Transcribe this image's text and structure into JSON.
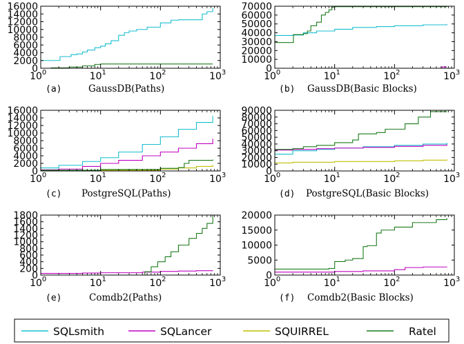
{
  "legend_entries": [
    {
      "name": "SQLsmith",
      "color": "#17becf"
    },
    {
      "name": "SQLancer",
      "color": "#c000c0"
    },
    {
      "name": "SQUIRREL",
      "color": "#bfbf00"
    },
    {
      "name": "Ratel",
      "color": "#1a7a1a"
    }
  ],
  "chart_data": [
    {
      "type": "line",
      "letter": "(a)",
      "caption": "GaussDB(Paths)",
      "xscale": "log",
      "xlim": [
        1,
        1000
      ],
      "ylim": [
        0,
        16000
      ],
      "yticks": [
        "0",
        "2000",
        "4000",
        "6000",
        "8000",
        "10000",
        "12000",
        "14000",
        "16000"
      ],
      "yticks_values": [
        0,
        2000,
        4000,
        6000,
        8000,
        10000,
        12000,
        14000,
        16000
      ],
      "series": [
        {
          "name": "SQLsmith",
          "color": "#17becf",
          "style": "step",
          "points": [
            [
              1,
              2000
            ],
            [
              2,
              2000
            ],
            [
              2.1,
              3000
            ],
            [
              3,
              3000
            ],
            [
              3.2,
              3500
            ],
            [
              4,
              3700
            ],
            [
              5,
              4200
            ],
            [
              6,
              4700
            ],
            [
              8,
              5300
            ],
            [
              10,
              5700
            ],
            [
              12,
              6300
            ],
            [
              15,
              7100
            ],
            [
              20,
              8500
            ],
            [
              25,
              9200
            ],
            [
              30,
              9600
            ],
            [
              40,
              10000
            ],
            [
              60,
              10600
            ],
            [
              100,
              11700
            ],
            [
              150,
              12400
            ],
            [
              200,
              12500
            ],
            [
              400,
              12500
            ],
            [
              500,
              14000
            ],
            [
              600,
              14600
            ],
            [
              700,
              14600
            ],
            [
              750,
              15500
            ]
          ]
        },
        {
          "name": "SQLancer",
          "color": "#c000c0",
          "style": "step",
          "points": [
            [
              1,
              0
            ],
            [
              750,
              0
            ]
          ]
        },
        {
          "name": "SQUIRREL",
          "color": "#bfbf00",
          "style": "step",
          "points": [
            [
              1,
              0
            ],
            [
              750,
              0
            ]
          ]
        },
        {
          "name": "Ratel",
          "color": "#1a7a1a",
          "style": "step",
          "points": [
            [
              1,
              0
            ],
            [
              1.5,
              100
            ],
            [
              3,
              300
            ],
            [
              5,
              600
            ],
            [
              8,
              1000
            ],
            [
              10,
              1100
            ],
            [
              750,
              1100
            ]
          ]
        }
      ]
    },
    {
      "type": "line",
      "letter": "(b)",
      "caption": "GaussDB(Basic Blocks)",
      "xscale": "log",
      "xlim": [
        1,
        1000
      ],
      "ylim": [
        0,
        70000
      ],
      "yticks": [
        "0",
        "10000",
        "20000",
        "30000",
        "40000",
        "50000",
        "60000",
        "70000"
      ],
      "yticks_values": [
        0,
        10000,
        20000,
        30000,
        40000,
        50000,
        60000,
        70000
      ],
      "series": [
        {
          "name": "SQLsmith",
          "color": "#17becf",
          "style": "step",
          "points": [
            [
              1,
              37000
            ],
            [
              2,
              37500
            ],
            [
              3,
              40000
            ],
            [
              5,
              42000
            ],
            [
              10,
              44000
            ],
            [
              20,
              46000
            ],
            [
              50,
              47000
            ],
            [
              100,
              48000
            ],
            [
              300,
              49000
            ],
            [
              750,
              50000
            ]
          ]
        },
        {
          "name": "SQLancer",
          "color": "#c000c0",
          "style": "step",
          "points": [
            [
              1,
              0
            ],
            [
              600,
              0
            ],
            [
              620,
              1500
            ],
            [
              750,
              1500
            ]
          ]
        },
        {
          "name": "SQUIRREL",
          "color": "#bfbf00",
          "style": "step",
          "points": [
            [
              1,
              0
            ],
            [
              750,
              0
            ]
          ]
        },
        {
          "name": "Ratel",
          "color": "#1a7a1a",
          "style": "step",
          "points": [
            [
              1,
              29000
            ],
            [
              2,
              29000
            ],
            [
              2.05,
              38000
            ],
            [
              3,
              39000
            ],
            [
              3.5,
              42000
            ],
            [
              4,
              48000
            ],
            [
              5,
              52000
            ],
            [
              6,
              60000
            ],
            [
              7,
              63000
            ],
            [
              8,
              66000
            ],
            [
              9,
              69000
            ],
            [
              10,
              69500
            ],
            [
              750,
              70000
            ]
          ]
        }
      ]
    },
    {
      "type": "line",
      "letter": "(c)",
      "caption": "PostgreSQL(Paths)",
      "xscale": "log",
      "xlim": [
        1,
        1000
      ],
      "ylim": [
        0,
        16000
      ],
      "yticks": [
        "0",
        "2000",
        "4000",
        "6000",
        "8000",
        "10000",
        "12000",
        "14000",
        "16000"
      ],
      "yticks_values": [
        0,
        2000,
        4000,
        6000,
        8000,
        10000,
        12000,
        14000,
        16000
      ],
      "series": [
        {
          "name": "SQLsmith",
          "color": "#17becf",
          "style": "step",
          "points": [
            [
              1,
              800
            ],
            [
              2,
              1500
            ],
            [
              5,
              2500
            ],
            [
              10,
              3500
            ],
            [
              20,
              5000
            ],
            [
              50,
              7000
            ],
            [
              100,
              9000
            ],
            [
              200,
              11000
            ],
            [
              400,
              12800
            ],
            [
              750,
              14500
            ]
          ]
        },
        {
          "name": "SQLancer",
          "color": "#c000c0",
          "style": "step",
          "points": [
            [
              1,
              300
            ],
            [
              2,
              500
            ],
            [
              5,
              1200
            ],
            [
              10,
              2000
            ],
            [
              20,
              2800
            ],
            [
              50,
              4000
            ],
            [
              100,
              5000
            ],
            [
              200,
              6000
            ],
            [
              400,
              7200
            ],
            [
              750,
              8500
            ]
          ]
        },
        {
          "name": "SQUIRREL",
          "color": "#bfbf00",
          "style": "step",
          "points": [
            [
              1,
              0
            ],
            [
              10,
              200
            ],
            [
              100,
              500
            ],
            [
              200,
              800
            ],
            [
              400,
              1200
            ],
            [
              750,
              1600
            ]
          ]
        },
        {
          "name": "Ratel",
          "color": "#1a7a1a",
          "style": "step",
          "points": [
            [
              1,
              200
            ],
            [
              10,
              400
            ],
            [
              100,
              700
            ],
            [
              200,
              900
            ],
            [
              250,
              2000
            ],
            [
              300,
              2800
            ],
            [
              750,
              3000
            ]
          ]
        }
      ]
    },
    {
      "type": "line",
      "letter": "(d)",
      "caption": "PostgreSQL(Basic Blocks)",
      "xscale": "log",
      "xlim": [
        1,
        1000
      ],
      "ylim": [
        0,
        90000
      ],
      "yticks": [
        "0",
        "10000",
        "20000",
        "30000",
        "40000",
        "50000",
        "60000",
        "70000",
        "80000",
        "90000"
      ],
      "yticks_values": [
        0,
        10000,
        20000,
        30000,
        40000,
        50000,
        60000,
        70000,
        80000,
        90000
      ],
      "series": [
        {
          "name": "SQLsmith",
          "color": "#17becf",
          "style": "step",
          "points": [
            [
              1,
              25000
            ],
            [
              2,
              30000
            ],
            [
              5,
              32000
            ],
            [
              10,
              34000
            ],
            [
              30,
              36000
            ],
            [
              100,
              38000
            ],
            [
              300,
              40000
            ],
            [
              750,
              42000
            ]
          ]
        },
        {
          "name": "SQLancer",
          "color": "#c000c0",
          "style": "step",
          "points": [
            [
              1,
              31000
            ],
            [
              2,
              32000
            ],
            [
              5,
              33000
            ],
            [
              10,
              34000
            ],
            [
              30,
              35000
            ],
            [
              100,
              36500
            ],
            [
              300,
              38000
            ],
            [
              750,
              39500
            ]
          ]
        },
        {
          "name": "SQUIRREL",
          "color": "#bfbf00",
          "style": "step",
          "points": [
            [
              1,
              12000
            ],
            [
              2,
              13000
            ],
            [
              10,
              14000
            ],
            [
              100,
              15000
            ],
            [
              300,
              16000
            ],
            [
              750,
              17000
            ]
          ]
        },
        {
          "name": "Ratel",
          "color": "#1a7a1a",
          "style": "step",
          "points": [
            [
              1,
              32000
            ],
            [
              2,
              33000
            ],
            [
              3,
              36000
            ],
            [
              5,
              38000
            ],
            [
              10,
              42000
            ],
            [
              20,
              46000
            ],
            [
              25,
              55000
            ],
            [
              50,
              57000
            ],
            [
              70,
              62000
            ],
            [
              150,
              70000
            ],
            [
              250,
              80000
            ],
            [
              400,
              88000
            ],
            [
              750,
              88500
            ]
          ]
        }
      ]
    },
    {
      "type": "line",
      "letter": "(e)",
      "caption": "Comdb2(Paths)",
      "xscale": "log",
      "xlim": [
        1,
        1000
      ],
      "ylim": [
        0,
        1800
      ],
      "yticks": [
        "0",
        "200",
        "400",
        "600",
        "800",
        "1000",
        "1200",
        "1400",
        "1600",
        "1800"
      ],
      "yticks_values": [
        0,
        200,
        400,
        600,
        800,
        1000,
        1200,
        1400,
        1600,
        1800
      ],
      "series": [
        {
          "name": "SQLsmith",
          "color": "#17becf",
          "style": "step",
          "points": [
            [
              1,
              0
            ],
            [
              750,
              0
            ]
          ]
        },
        {
          "name": "SQLancer",
          "color": "#c000c0",
          "style": "step",
          "points": [
            [
              1,
              50
            ],
            [
              5,
              60
            ],
            [
              10,
              70
            ],
            [
              50,
              90
            ],
            [
              100,
              110
            ],
            [
              200,
              120
            ],
            [
              400,
              130
            ],
            [
              750,
              140
            ]
          ]
        },
        {
          "name": "SQUIRREL",
          "color": "#bfbf00",
          "style": "step",
          "points": [
            [
              1,
              0
            ],
            [
              750,
              0
            ]
          ]
        },
        {
          "name": "Ratel",
          "color": "#1a7a1a",
          "style": "step",
          "points": [
            [
              1,
              0
            ],
            [
              50,
              0
            ],
            [
              55,
              100
            ],
            [
              70,
              250
            ],
            [
              90,
              400
            ],
            [
              120,
              550
            ],
            [
              150,
              700
            ],
            [
              200,
              900
            ],
            [
              300,
              1100
            ],
            [
              400,
              1250
            ],
            [
              500,
              1400
            ],
            [
              600,
              1550
            ],
            [
              750,
              1800
            ]
          ]
        }
      ]
    },
    {
      "type": "line",
      "letter": "(f)",
      "caption": "Comdb2(Basic Blocks)",
      "xscale": "log",
      "xlim": [
        1,
        1000
      ],
      "ylim": [
        0,
        20000
      ],
      "yticks": [
        "0",
        "5000",
        "10000",
        "15000",
        "20000"
      ],
      "yticks_values": [
        0,
        5000,
        10000,
        15000,
        20000
      ],
      "series": [
        {
          "name": "SQLsmith",
          "color": "#17becf",
          "style": "step",
          "points": [
            [
              1,
              0
            ],
            [
              750,
              0
            ]
          ]
        },
        {
          "name": "SQLancer",
          "color": "#c000c0",
          "style": "step",
          "points": [
            [
              1,
              1000
            ],
            [
              10,
              1200
            ],
            [
              30,
              1400
            ],
            [
              100,
              1800
            ],
            [
              150,
              2500
            ],
            [
              300,
              2700
            ],
            [
              750,
              2800
            ]
          ]
        },
        {
          "name": "SQUIRREL",
          "color": "#bfbf00",
          "style": "step",
          "points": [
            [
              1,
              0
            ],
            [
              750,
              0
            ]
          ]
        },
        {
          "name": "Ratel",
          "color": "#1a7a1a",
          "style": "step",
          "points": [
            [
              1,
              2000
            ],
            [
              8,
              2200
            ],
            [
              10,
              4500
            ],
            [
              15,
              5000
            ],
            [
              20,
              5500
            ],
            [
              30,
              9500
            ],
            [
              35,
              9800
            ],
            [
              50,
              14000
            ],
            [
              60,
              15000
            ],
            [
              100,
              16000
            ],
            [
              200,
              17500
            ],
            [
              500,
              18500
            ],
            [
              750,
              19000
            ]
          ]
        }
      ]
    }
  ]
}
